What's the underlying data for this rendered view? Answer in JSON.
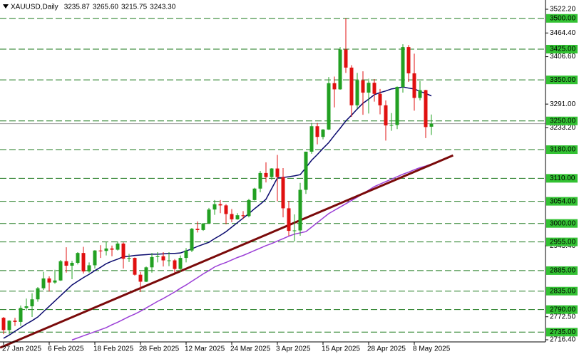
{
  "chart_data": {
    "type": "candlestick",
    "title": "XAUUSD,Daily",
    "header_values": [
      {
        "value": 3235.87,
        "label": "3235.87"
      },
      {
        "value": 3265.6,
        "label": "3265.60"
      },
      {
        "value": 3215.75,
        "label": "3215.75"
      },
      {
        "value": 3243.3,
        "label": "3243.30"
      }
    ],
    "categories": [
      "27 Jan 2025",
      null,
      null,
      null,
      null,
      null,
      null,
      null,
      "6 Feb 2025",
      null,
      null,
      null,
      null,
      null,
      null,
      null,
      "18 Feb 2025",
      null,
      null,
      null,
      null,
      null,
      null,
      null,
      "28 Feb 2025",
      null,
      null,
      null,
      null,
      null,
      null,
      null,
      "12 Mar 2025",
      null,
      null,
      null,
      null,
      null,
      null,
      null,
      "24 Mar 2025",
      null,
      null,
      null,
      null,
      null,
      null,
      null,
      "3 Apr 2025",
      null,
      null,
      null,
      null,
      null,
      null,
      null,
      "15 Apr 2025",
      null,
      null,
      null,
      null,
      null,
      null,
      null,
      "28 Apr 2025",
      null,
      null,
      null,
      null,
      null,
      null,
      null,
      "8 May 2025",
      null,
      null,
      null
    ],
    "open": [
      2770,
      2740,
      2763,
      2760,
      2794,
      2798,
      2815,
      2842,
      2866,
      2856,
      2861,
      2908,
      2897,
      2904,
      2928,
      2883,
      2898,
      2934,
      2933,
      2939,
      2936,
      2951,
      2914,
      2916,
      2875,
      2858,
      2893,
      2918,
      2920,
      2910,
      2910,
      2889,
      2916,
      2934,
      2987,
      2984,
      3000,
      3034,
      3047,
      3044,
      3023,
      3010,
      3020,
      3018,
      3057,
      3085,
      3123,
      3113,
      3134,
      3113,
      3037,
      2982,
      2983,
      3082,
      3175,
      3237,
      3211,
      3229,
      3342,
      3327,
      3424,
      3380,
      3288,
      3349,
      3319,
      3343,
      3316,
      3288,
      3239,
      3240,
      3333,
      3430,
      3366,
      3306,
      3325,
      3235.87
    ],
    "high": [
      2772,
      2764,
      2770,
      2800,
      2817,
      2830,
      2845,
      2882,
      2871,
      2887,
      2911,
      2942,
      2909,
      2930,
      2943,
      2905,
      2935,
      2947,
      2955,
      2946,
      2956,
      2954,
      2926,
      2917,
      2882,
      2895,
      2928,
      2930,
      2930,
      2930,
      2913,
      2922,
      2940,
      2989,
      3005,
      3001,
      3038,
      3057,
      3057,
      3047,
      3035,
      3025,
      3030,
      3060,
      3087,
      3128,
      3149,
      3135,
      3167,
      3135,
      3055,
      3022,
      3099,
      3175,
      3245,
      3245,
      3230,
      3357,
      3358,
      3430,
      3500,
      3386,
      3367,
      3371,
      3353,
      3352,
      3328,
      3300,
      3269,
      3334,
      3437,
      3435,
      3414,
      3347,
      3326,
      3265.6
    ],
    "low": [
      2730,
      2730,
      2750,
      2750,
      2788,
      2772,
      2809,
      2838,
      2834,
      2853,
      2860,
      2880,
      2864,
      2900,
      2878,
      2880,
      2890,
      2916,
      2922,
      2920,
      2934,
      2890,
      2906,
      2873,
      2833,
      2857,
      2880,
      2905,
      2895,
      2896,
      2880,
      2881,
      2905,
      2930,
      2978,
      2982,
      2999,
      3021,
      3025,
      2998,
      3003,
      3009,
      3011,
      3015,
      3056,
      3076,
      3100,
      3106,
      3054,
      3015,
      2970,
      2956,
      2970,
      3072,
      3170,
      3193,
      3205,
      3228,
      3283,
      3326,
      3367,
      3260,
      3280,
      3265,
      3268,
      3297,
      3266,
      3202,
      3226,
      3230,
      3319,
      3345,
      3275,
      3300,
      3208,
      3215.75
    ],
    "close": [
      2740,
      2763,
      2760,
      2794,
      2798,
      2815,
      2842,
      2866,
      2856,
      2861,
      2908,
      2897,
      2904,
      2928,
      2883,
      2898,
      2934,
      2933,
      2939,
      2936,
      2951,
      2914,
      2916,
      2875,
      2858,
      2893,
      2918,
      2920,
      2910,
      2910,
      2889,
      2916,
      2934,
      2987,
      2984,
      3000,
      3034,
      3047,
      3044,
      3023,
      3010,
      3020,
      3018,
      3057,
      3085,
      3123,
      3113,
      3134,
      3113,
      3037,
      2982,
      2983,
      3082,
      3175,
      3237,
      3211,
      3229,
      3342,
      3327,
      3424,
      3380,
      3288,
      3349,
      3319,
      3343,
      3316,
      3288,
      3239,
      3240,
      3333,
      3430,
      3366,
      3306,
      3325,
      3235,
      3243.3
    ],
    "up_color": "#22a022",
    "down_color": "#e01010",
    "series": [
      {
        "color": "#0a0a6e",
        "values": [
          2720,
          2728,
          2737,
          2746,
          2755,
          2763,
          2772,
          2785,
          2798,
          2811,
          2824,
          2837,
          2850,
          2859,
          2868,
          2876,
          2885,
          2893,
          2902,
          2908,
          2913,
          2919,
          2920,
          2922,
          2923,
          2924,
          2925,
          2925,
          2926,
          2927,
          2927,
          2928,
          2933,
          2938,
          2944,
          2949,
          2954,
          2963,
          2971,
          2980,
          2991,
          3002,
          3013,
          3024,
          3036,
          3047,
          3059,
          3085,
          3111,
          3112,
          3114,
          3116,
          3119,
          3136,
          3154,
          3168,
          3183,
          3197,
          3215,
          3232,
          3250,
          3264,
          3279,
          3293,
          3303,
          3314,
          3319,
          3323,
          3328,
          3330,
          3333,
          3330,
          3328,
          3322,
          3317,
          3311
        ]
      },
      {
        "color": "#9b3fd6",
        "values": [
          null,
          null,
          null,
          null,
          null,
          null,
          null,
          null,
          null,
          null,
          null,
          null,
          2716,
          2721,
          2726,
          2731,
          2736,
          2741,
          2746,
          2753,
          2759,
          2766,
          2773,
          2779,
          2786,
          2794,
          2802,
          2810,
          2817,
          2825,
          2833,
          2842,
          2850,
          2859,
          2868,
          2877,
          2885,
          2894,
          2900,
          2905,
          2911,
          2917,
          2922,
          2928,
          2934,
          2940,
          2946,
          2951,
          2957,
          2963,
          2969,
          2974,
          2977,
          2980,
          2991,
          3002,
          3013,
          3024,
          3032,
          3040,
          3048,
          3056,
          3064,
          3073,
          3081,
          3090,
          3096,
          3102,
          3108,
          3114,
          3120,
          3125,
          3131,
          3136,
          3140,
          3145
        ]
      }
    ],
    "trendline": {
      "color": "#7a0a0a",
      "x": [
        -0.6,
        78.8
      ],
      "values": [
        2697,
        3166
      ]
    },
    "levels": [
      {
        "value": 3500,
        "label": "3500.00"
      },
      {
        "value": 3425,
        "label": "3425.00"
      },
      {
        "value": 3350,
        "label": "3350.00"
      },
      {
        "value": 3250,
        "label": "3250.00"
      },
      {
        "value": 3180,
        "label": "3180.00"
      },
      {
        "value": 3110,
        "label": "3110.00"
      },
      {
        "value": 3054,
        "label": "3054.00"
      },
      {
        "value": 3000,
        "label": "3000.00"
      },
      {
        "value": 2955,
        "label": "2955.00"
      },
      {
        "value": 2885,
        "label": "2885.00"
      },
      {
        "value": 2835,
        "label": "2835.00"
      },
      {
        "value": 2790,
        "label": "2790.00"
      },
      {
        "value": 2735,
        "label": "2735.00"
      }
    ],
    "level_color": "#1e7a1e",
    "level_label_color": "#33c233",
    "ylim": [
      2711.2,
      3544.8
    ],
    "yticks": [
      {
        "value": 3522.2,
        "label": "3522.20"
      },
      {
        "value": 3464.4,
        "label": "3464.40"
      },
      {
        "value": 3406.6,
        "label": "3406.60"
      },
      {
        "value": 3291.0,
        "label": "3291.00"
      },
      {
        "value": 3233.2,
        "label": "3233.20"
      },
      {
        "value": 2945.4,
        "label": "2945.40"
      },
      {
        "value": 2772.5,
        "label": "2772.50"
      },
      {
        "value": 2716.4,
        "label": "2716.40"
      }
    ]
  }
}
